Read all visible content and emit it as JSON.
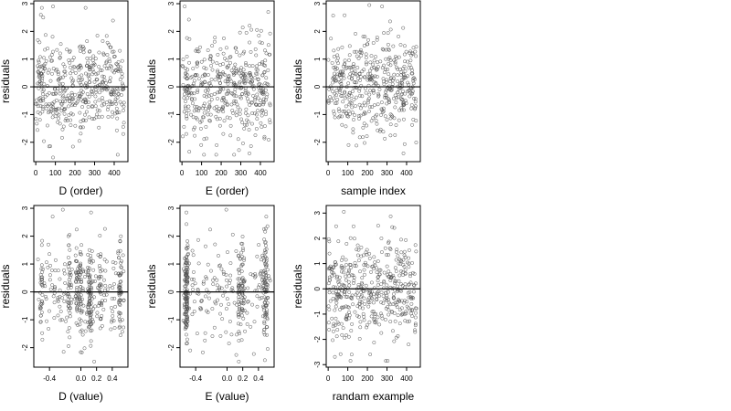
{
  "chart_data": [
    {
      "type": "scatter",
      "xlabel": "D (order)",
      "ylabel": "residuals",
      "xlim": [
        -10,
        470
      ],
      "ylim": [
        -2.7,
        3.1
      ],
      "xticks": [
        0,
        100,
        200,
        300,
        400
      ],
      "yticks": [
        -2,
        -1,
        0,
        1,
        2,
        3
      ],
      "xtick_labels": [
        "0",
        "100",
        "200",
        "300",
        "400"
      ],
      "hline": 0,
      "grid": false,
      "seed": 11,
      "n_points": 450,
      "x_dist": "uniform",
      "x_range": [
        0,
        450
      ],
      "spread": 0.85,
      "highlight_points": [
        {
          "x": 38,
          "y": 2.5
        },
        {
          "x": 88,
          "y": 2.9
        },
        {
          "x": 254,
          "y": 2.85
        },
        {
          "x": 68,
          "y": -2.15
        },
        {
          "x": 88,
          "y": -2.55
        },
        {
          "x": 418,
          "y": -2.45
        }
      ]
    },
    {
      "type": "scatter",
      "xlabel": "E (order)",
      "ylabel": "residuals",
      "xlim": [
        -10,
        470
      ],
      "ylim": [
        -2.7,
        3.1
      ],
      "xticks": [
        0,
        100,
        200,
        300,
        400
      ],
      "yticks": [
        -2,
        -1,
        0,
        1,
        2,
        3
      ],
      "xtick_labels": [
        "0",
        "100",
        "200",
        "300",
        "400"
      ],
      "hline": 0,
      "grid": false,
      "seed": 23,
      "n_points": 450,
      "x_dist": "uniform",
      "x_range": [
        0,
        450
      ],
      "spread": 0.85,
      "highlight_points": [
        {
          "x": 14,
          "y": 2.9
        },
        {
          "x": 440,
          "y": 2.7
        },
        {
          "x": 98,
          "y": -2.1
        },
        {
          "x": 266,
          "y": -2.45
        },
        {
          "x": 344,
          "y": -2.4
        }
      ]
    },
    {
      "type": "scatter",
      "xlabel": "sample index",
      "ylabel": "residuals",
      "xlim": [
        -10,
        470
      ],
      "ylim": [
        -2.7,
        3.1
      ],
      "xticks": [
        0,
        100,
        200,
        300,
        400
      ],
      "yticks": [
        -2,
        -1,
        0,
        1,
        2,
        3
      ],
      "xtick_labels": [
        "0",
        "100",
        "200",
        "300",
        "400"
      ],
      "hline": 0,
      "grid": false,
      "seed": 37,
      "n_points": 450,
      "x_dist": "uniform",
      "x_range": [
        0,
        450
      ],
      "spread": 0.85,
      "highlight_points": [
        {
          "x": 210,
          "y": 2.95
        },
        {
          "x": 275,
          "y": 2.9
        },
        {
          "x": 104,
          "y": -2.1
        },
        {
          "x": 384,
          "y": -2.4
        }
      ]
    },
    {
      "type": "scatter",
      "xlabel": "D (value)",
      "ylabel": "residuals",
      "xlim": [
        -0.6,
        0.6
      ],
      "ylim": [
        -2.7,
        3.1
      ],
      "xticks": [
        -0.4,
        0.0,
        0.2,
        0.4
      ],
      "yticks": [
        -2,
        -1,
        0,
        1,
        2,
        3
      ],
      "xtick_labels": [
        "-0.4",
        "0.0",
        "0.2",
        "0.4"
      ],
      "hline": 0,
      "grid": false,
      "seed": 51,
      "n_points": 450,
      "x_dist": "clustered",
      "x_clusters": [
        -0.5,
        -0.15,
        -0.05,
        0.0,
        0.1,
        0.12,
        0.25,
        0.5
      ],
      "x_range": [
        -0.55,
        0.55
      ],
      "spread": 0.85,
      "highlight_points": [
        {
          "x": -0.36,
          "y": 2.7
        },
        {
          "x": -0.23,
          "y": 2.95
        },
        {
          "x": 0.13,
          "y": 2.85
        },
        {
          "x": -0.22,
          "y": -2.15
        },
        {
          "x": 0.17,
          "y": -2.5
        }
      ]
    },
    {
      "type": "scatter",
      "xlabel": "E (value)",
      "ylabel": "residuals",
      "xlim": [
        -0.6,
        0.6
      ],
      "ylim": [
        -2.7,
        3.1
      ],
      "xticks": [
        -0.4,
        0.0,
        0.2,
        0.4
      ],
      "yticks": [
        -2,
        -1,
        0,
        1,
        2,
        3
      ],
      "xtick_labels": [
        "-0.4",
        "0.0",
        "0.2",
        "0.4"
      ],
      "hline": 0,
      "grid": false,
      "seed": 67,
      "n_points": 450,
      "x_dist": "clustered",
      "x_clusters": [
        -0.52,
        -0.52,
        -0.52,
        0.15,
        0.2,
        0.48,
        0.5
      ],
      "x_range": [
        -0.55,
        0.55
      ],
      "spread": 0.85,
      "highlight_points": [
        {
          "x": -0.01,
          "y": 2.95
        },
        {
          "x": 0.5,
          "y": 2.7
        },
        {
          "x": -0.47,
          "y": -2.1
        },
        {
          "x": 0.15,
          "y": -2.5
        }
      ]
    },
    {
      "type": "scatter",
      "xlabel": "randam example",
      "ylabel": "residuals",
      "xlim": [
        -10,
        470
      ],
      "ylim": [
        -3.1,
        3.3
      ],
      "xticks": [
        0,
        100,
        200,
        300,
        400
      ],
      "yticks": [
        -3,
        -2,
        -1,
        0,
        1,
        2,
        3
      ],
      "xtick_labels": [
        "0",
        "100",
        "200",
        "300",
        "400"
      ],
      "hline": 0,
      "grid": false,
      "seed": 83,
      "n_points": 450,
      "x_dist": "uniform",
      "x_range": [
        0,
        450
      ],
      "spread": 1.0,
      "highlight_points": [
        {
          "x": 80,
          "y": 3.05
        },
        {
          "x": 120,
          "y": -2.6
        },
        {
          "x": 255,
          "y": 2.5
        },
        {
          "x": 410,
          "y": -2.2
        }
      ]
    }
  ]
}
